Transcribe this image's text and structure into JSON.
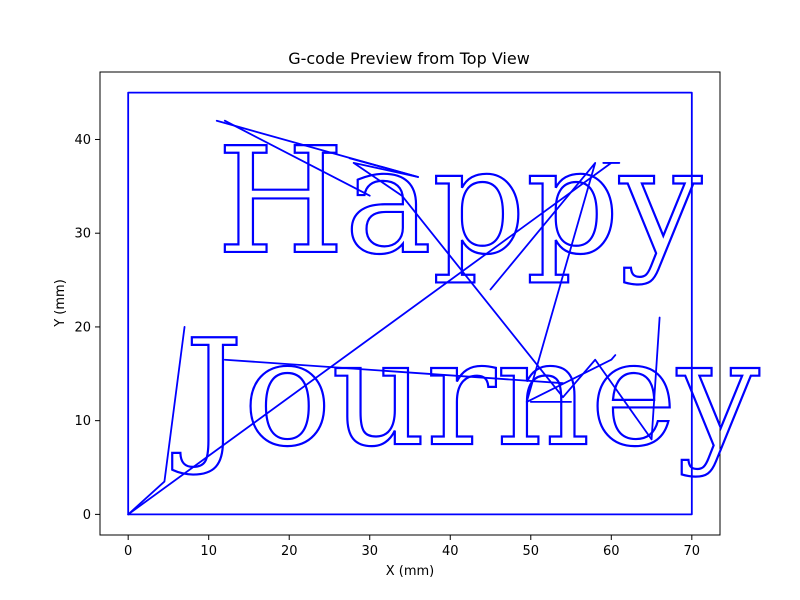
{
  "chart_data": {
    "type": "line",
    "title": "G-code Preview from Top View",
    "xlabel": "X (mm)",
    "ylabel": "Y (mm)",
    "xlim": [
      -3.5,
      73.5
    ],
    "ylim": [
      -2.2,
      47.2
    ],
    "xticks": [
      0,
      10,
      20,
      30,
      40,
      50,
      60,
      70
    ],
    "yticks": [
      0,
      10,
      20,
      30,
      40
    ],
    "grid": false,
    "color": "#0000ff",
    "text_paths": [
      {
        "text": "Happy",
        "x": 11.0,
        "y": 28.0,
        "height": 14
      },
      {
        "text": "Journey",
        "x": 7.0,
        "y": 7.5,
        "height": 14
      }
    ],
    "series": [
      {
        "x": [
          0,
          70,
          70,
          0,
          0
        ],
        "y": [
          0,
          0,
          45,
          45,
          0
        ]
      },
      {
        "x": [
          0,
          4.5,
          7,
          4.5,
          0
        ],
        "y": [
          0,
          3.5,
          20,
          3.5,
          0
        ]
      },
      {
        "x": [
          0,
          60,
          61,
          59
        ],
        "y": [
          0,
          37.5,
          37.5,
          37.5
        ]
      },
      {
        "x": [
          11,
          36,
          28,
          34,
          54,
          58,
          65,
          66
        ],
        "y": [
          42,
          36,
          37.5,
          34,
          12.5,
          16.5,
          8,
          21
        ]
      },
      {
        "x": [
          12,
          54
        ],
        "y": [
          16.5,
          14
        ]
      },
      {
        "x": [
          45,
          58,
          49.5,
          60,
          60.5
        ],
        "y": [
          24,
          37.5,
          12,
          16.5,
          17
        ]
      },
      {
        "x": [
          27.5,
          36
        ],
        "y": [
          38,
          36
        ]
      },
      {
        "x": [
          12,
          30
        ],
        "y": [
          42,
          34
        ]
      },
      {
        "x": [
          50,
          55
        ],
        "y": [
          12,
          12
        ]
      }
    ]
  }
}
